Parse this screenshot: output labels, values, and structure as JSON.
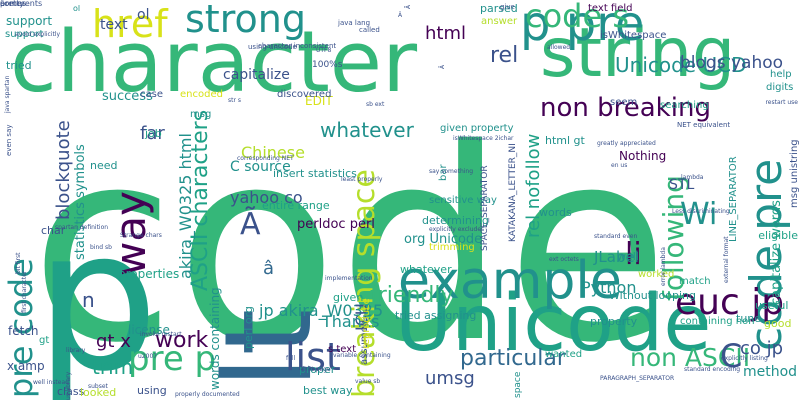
{
  "palette": {
    "deep_purple": "#440154",
    "indigo": "#3b528b",
    "blue": "#31688e",
    "teal": "#21918c",
    "green_teal": "#1fa187",
    "green": "#35b779",
    "bright_green": "#4ac16d",
    "lime": "#6ece58",
    "yellow_green": "#b5de2b",
    "yellow": "#d8e219"
  },
  "words": [
    {
      "text": "code"
    },
    {
      "text": "character"
    },
    {
      "text": "p"
    },
    {
      "text": "lt"
    },
    {
      "text": "string"
    },
    {
      "text": "Unicode"
    },
    {
      "text": "example"
    },
    {
      "text": "p pre"
    },
    {
      "text": "code s"
    },
    {
      "text": "code pre"
    },
    {
      "text": "strong"
    },
    {
      "text": "href"
    },
    {
      "text": "euc jp"
    },
    {
      "text": "pre code"
    },
    {
      "text": "way"
    },
    {
      "text": "pre p"
    },
    {
      "text": "list"
    },
    {
      "text": "breaking space"
    },
    {
      "text": "non breaking"
    },
    {
      "text": "following"
    },
    {
      "text": "ASCII characters"
    },
    {
      "text": "Unicode UCD"
    },
    {
      "text": "html"
    },
    {
      "text": "rel"
    },
    {
      "text": "blogs yahoo"
    },
    {
      "text": "rel nofollow"
    },
    {
      "text": "friendly"
    },
    {
      "text": "li"
    },
    {
      "text": "Wi"
    },
    {
      "text": "non ASCII"
    },
    {
      "text": "particular"
    },
    {
      "text": "umsg"
    },
    {
      "text": "work"
    },
    {
      "text": "C"
    },
    {
      "text": "co jp"
    },
    {
      "text": "blockquote"
    },
    {
      "text": "whatever"
    },
    {
      "text": "far"
    },
    {
      "text": "yahoo co"
    },
    {
      "text": "C source"
    },
    {
      "text": "Ã"
    },
    {
      "text": "â"
    },
    {
      "text": "akira_W0325 html"
    },
    {
      "text": "jp akira_W0325"
    },
    {
      "text": "Python"
    },
    {
      "text": "JLabel"
    },
    {
      "text": "ICU"
    },
    {
      "text": "gt x"
    },
    {
      "text": "trim"
    },
    {
      "text": "n"
    },
    {
      "text": "Thanks"
    },
    {
      "text": "ol"
    },
    {
      "text": "text"
    },
    {
      "text": "capitalize"
    },
    {
      "text": "success"
    },
    {
      "text": "EDIT"
    },
    {
      "text": "Chinese"
    },
    {
      "text": "perldoc perl"
    },
    {
      "text": "org Unicode"
    },
    {
      "text": "STL"
    },
    {
      "text": "method"
    },
    {
      "text": "Nothing"
    },
    {
      "text": "capitalize words"
    },
    {
      "text": "statistics symbols"
    },
    {
      "text": "support"
    },
    {
      "text": "tried"
    },
    {
      "text": "x amp"
    },
    {
      "text": "fetch"
    },
    {
      "text": "license"
    },
    {
      "text": "properties"
    },
    {
      "text": "whatever"
    },
    {
      "text": "insert statistics"
    },
    {
      "text": "entire range"
    },
    {
      "text": "best way"
    },
    {
      "text": "words containing"
    },
    {
      "text": "tried assigning"
    },
    {
      "text": "containing non"
    },
    {
      "text": "perl org"
    },
    {
      "text": "Without looping"
    },
    {
      "text": "given property"
    },
    {
      "text": "html gt"
    },
    {
      "text": "seem"
    },
    {
      "text": "searching"
    },
    {
      "text": "parsed"
    },
    {
      "text": "text field"
    },
    {
      "text": "isWhitespace"
    },
    {
      "text": "answer"
    },
    {
      "text": "wanted"
    },
    {
      "text": "eligible"
    },
    {
      "text": "digits"
    },
    {
      "text": "help"
    },
    {
      "text": "given"
    },
    {
      "text": "tune"
    },
    {
      "text": "useful"
    },
    {
      "text": "well"
    },
    {
      "text": "match"
    },
    {
      "text": "property"
    },
    {
      "text": "worked"
    },
    {
      "text": "char"
    },
    {
      "text": "job"
    },
    {
      "text": "need"
    },
    {
      "text": "discovered"
    },
    {
      "text": "case"
    },
    {
      "text": "encoded"
    },
    {
      "text": "msg"
    },
    {
      "text": "proper"
    },
    {
      "text": "using"
    },
    {
      "text": "s text"
    },
    {
      "text": "assumed"
    },
    {
      "text": "sensitive way"
    },
    {
      "text": "determining"
    },
    {
      "text": "trimming"
    },
    {
      "text": "words"
    },
    {
      "text": "bar"
    },
    {
      "text": "class"
    },
    {
      "text": "looked"
    },
    {
      "text": "good"
    },
    {
      "text": "SPACE_SEPARATOR"
    },
    {
      "text": "KATAKANA_LETTER_NI"
    },
    {
      "text": "LINE_SEPARATOR"
    },
    {
      "text": "msg unistring"
    },
    {
      "text": "reproduce"
    },
    {
      "text": "support"
    },
    {
      "text": "gt"
    },
    {
      "text": "ol"
    },
    {
      "text": "space"
    },
    {
      "text": "java lang"
    },
    {
      "text": "give"
    },
    {
      "text": "called"
    },
    {
      "text": "allowed"
    },
    {
      "text": "restart use"
    },
    {
      "text": "greatly appreciated"
    },
    {
      "text": "NET equivalent"
    },
    {
      "text": "even say"
    },
    {
      "text": "avoid explicitly"
    },
    {
      "text": "bind sb"
    },
    {
      "text": "Strange chars"
    },
    {
      "text": "bit first"
    },
    {
      "text": "first character"
    },
    {
      "text": "spartan definition"
    },
    {
      "text": "java spartan"
    },
    {
      "text": "sb ext"
    },
    {
      "text": "u2007"
    },
    {
      "text": "variable containing"
    },
    {
      "text": "invoke restart"
    },
    {
      "text": "explicitly listing"
    },
    {
      "text": "standard encoding"
    },
    {
      "text": "PARAGRAPH_SEPARATOR"
    },
    {
      "text": "properly documented"
    },
    {
      "text": "implementation"
    },
    {
      "text": "first page"
    },
    {
      "text": "value sb"
    },
    {
      "text": "explicitly excludes"
    },
    {
      "text": "least properly"
    },
    {
      "text": "say something"
    },
    {
      "text": "isWhitespace 2ichar"
    },
    {
      "text": "en us"
    },
    {
      "text": "corresponding NET"
    },
    {
      "text": "Less discriminating"
    },
    {
      "text": "lambda"
    },
    {
      "text": "error lambda"
    },
    {
      "text": "ext octets"
    },
    {
      "text": "standard even"
    },
    {
      "text": "external format"
    },
    {
      "text": "full"
    },
    {
      "text": "library"
    },
    {
      "text": "well instead"
    },
    {
      "text": "us library"
    },
    {
      "text": "subset"
    },
    {
      "text": "str s"
    },
    {
      "text": "UTF8"
    },
    {
      "text": "100%s"
    },
    {
      "text": "using unicode"
    },
    {
      "text": "character inconsistent"
    },
    {
      "text": "Â"
    },
    {
      "text": "Ã"
    },
    {
      "text": "Â"
    },
    {
      "text": "â"
    },
    {
      "text": "comments"
    },
    {
      "text": "comes"
    },
    {
      "text": "pretty"
    }
  ]
}
